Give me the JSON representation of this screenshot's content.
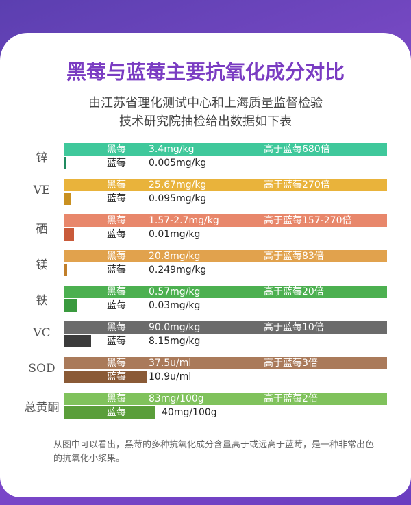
{
  "header": {
    "title": "黑莓与蓝莓主要抗氧化成分对比",
    "subtitle": [
      "由江苏省理化测试中心和上海质量监督检验",
      "技术研究院抽检给出数据如下表"
    ]
  },
  "rows": [
    {
      "label": "锌",
      "top_name": "黑莓",
      "top_value": "3.4mg/kg",
      "ratio": "高于蓝莓680倍",
      "bottom_name": "蓝莓",
      "bottom_value": "0.005mg/kg"
    },
    {
      "label": "VE",
      "top_name": "黑莓",
      "top_value": "25.67mg/kg",
      "ratio": "高于蓝莓270倍",
      "bottom_name": "蓝莓",
      "bottom_value": "0.095mg/kg"
    },
    {
      "label": "硒",
      "top_name": "黑莓",
      "top_value": "1.57-2.7mg/kg",
      "ratio": "高于蓝莓157-270倍",
      "bottom_name": "蓝莓",
      "bottom_value": "0.01mg/kg"
    },
    {
      "label": "镁",
      "top_name": "黑莓",
      "top_value": "20.8mg/kg",
      "ratio": "高于蓝莓83倍",
      "bottom_name": "蓝莓",
      "bottom_value": "0.249mg/kg"
    },
    {
      "label": "铁",
      "top_name": "黑莓",
      "top_value": "0.57mg/kg",
      "ratio": "高于蓝莓20倍",
      "bottom_name": "蓝莓",
      "bottom_value": "0.03mg/kg"
    },
    {
      "label": "VC",
      "top_name": "黑莓",
      "top_value": "90.0mg/kg",
      "ratio": "高于蓝莓10倍",
      "bottom_name": "蓝莓",
      "bottom_value": "8.15mg/kg"
    },
    {
      "label": "SOD",
      "top_name": "黑莓",
      "top_value": "37.5u/ml",
      "ratio": "高于蓝莓3倍",
      "bottom_name": "蓝莓",
      "bottom_value": "10.9u/ml"
    },
    {
      "label": "总黄酮",
      "top_name": "黑莓",
      "top_value": "83mg/100g",
      "ratio": "高于蓝莓2倍",
      "bottom_name": "蓝莓",
      "bottom_value": "40mg/100g"
    }
  ],
  "note": "从图中可以看出，黑莓的多种抗氧化成分含量高于或远高于蓝莓，是一种非常出色的抗氧化小浆果。"
}
